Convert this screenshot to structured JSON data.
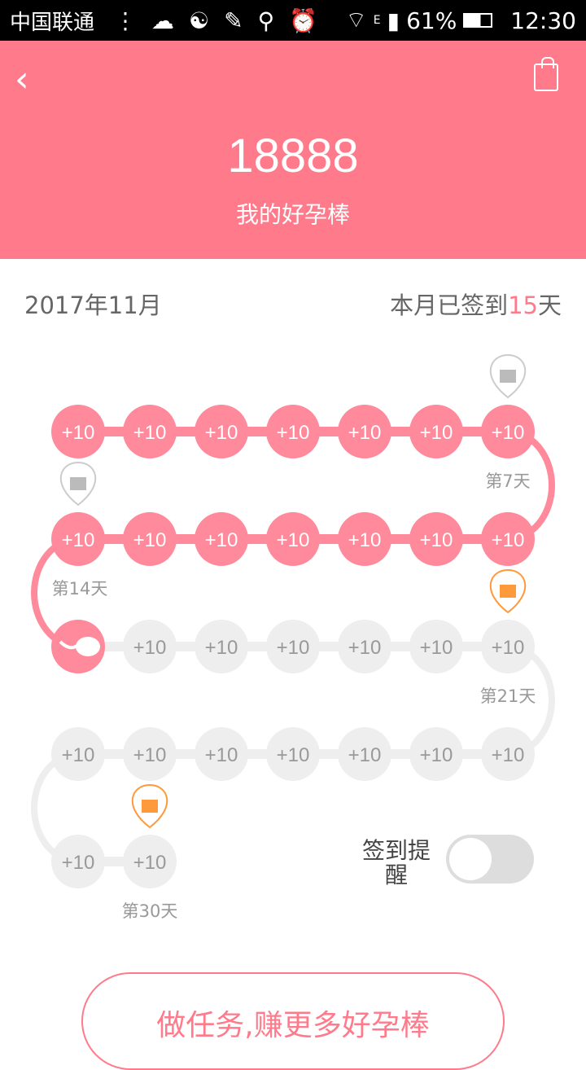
{
  "status_bar": {
    "carrier": "中国联通",
    "battery": "61%",
    "time": "12:30",
    "network": "E"
  },
  "header": {
    "points": "18888",
    "points_label": "我的好孕棒"
  },
  "calendar": {
    "month": "2017年11月",
    "signed_prefix": "本月已签到",
    "signed_days": "15",
    "signed_suffix": "天",
    "reward": "+10",
    "total_days": 30,
    "checked_days": 14,
    "today": 15,
    "day_labels": [
      {
        "day": 7,
        "text": "第7天"
      },
      {
        "day": 14,
        "text": "第14天"
      },
      {
        "day": 21,
        "text": "第21天"
      },
      {
        "day": 30,
        "text": "第30天"
      }
    ],
    "gifts": [
      {
        "day": 7,
        "state": "claimed"
      },
      {
        "day": 14,
        "state": "claimed"
      },
      {
        "day": 21,
        "state": "pending"
      },
      {
        "day": 30,
        "state": "pending"
      }
    ]
  },
  "reminder": {
    "label": "签到提醒",
    "label_main": "签到提",
    "label_tail": "醒",
    "enabled": false
  },
  "task_button": "做任务,赚更多好孕棒",
  "colors": {
    "primary": "#ff7a8a",
    "checked": "#ff8a9b",
    "unchecked": "#eeeeee",
    "gift": "#ff9a3c"
  }
}
